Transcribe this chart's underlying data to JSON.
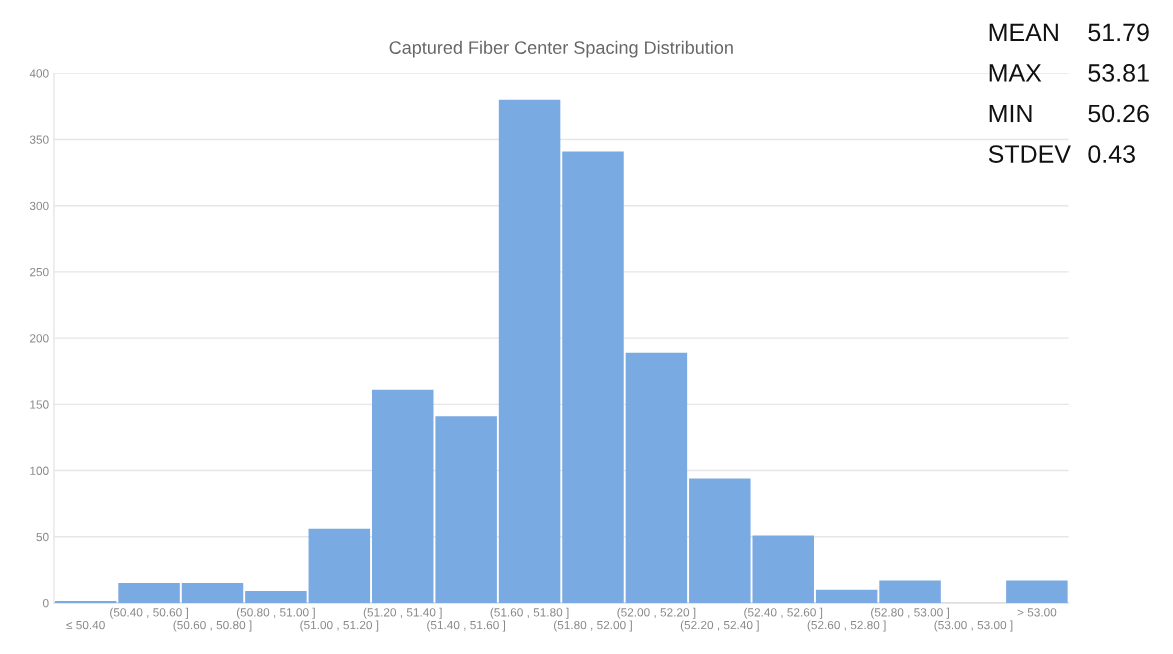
{
  "chart_data": {
    "type": "bar",
    "title": "Captured Fiber Center Spacing Distribution",
    "categories": [
      "≤ 50.40",
      "(50.40 , 50.60 ]",
      "(50.60 , 50.80 ]",
      "(50.80 , 51.00 ]",
      "(51.00 , 51.20 ]",
      "(51.20 , 51.40 ]",
      "(51.40 , 51.60 ]",
      "(51.60 , 51.80 ]",
      "(51.80 , 52.00 ]",
      "(52.00 , 52.20 ]",
      "(52.20 , 52.40 ]",
      "(52.40 , 52.60 ]",
      "(52.60 , 52.80 ]",
      "(52.80 , 53.00 ]",
      "(53.00 , 53.00 ]",
      "> 53.00"
    ],
    "values": [
      1.5,
      15,
      15,
      9,
      56,
      161,
      141,
      380,
      341,
      189,
      94,
      51,
      10,
      17,
      0,
      17
    ],
    "color": "#7aaae2",
    "ylim": [
      0,
      400
    ],
    "yticks": [
      0,
      50,
      100,
      150,
      200,
      250,
      300,
      350,
      400
    ],
    "grid": "y",
    "annotations": [
      "MEAN",
      "51.79",
      "MAX",
      "53.81",
      "MIN",
      "50.26",
      "STDEV",
      "0.43"
    ]
  }
}
